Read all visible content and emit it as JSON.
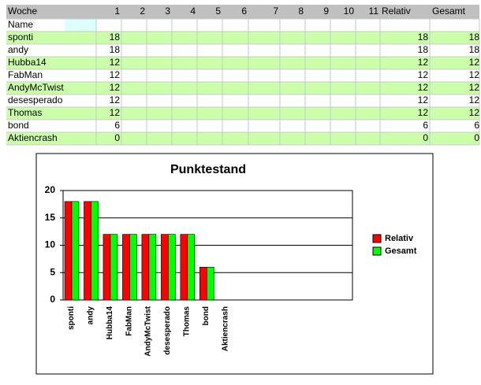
{
  "table": {
    "header": {
      "label": "Woche",
      "weeks": [
        1,
        2,
        3,
        4,
        5,
        6,
        7,
        8,
        9,
        10,
        11
      ],
      "relativ": "Relativ",
      "gesamt": "Gesamt"
    },
    "name_label": "Name",
    "rows": [
      {
        "name": "sponti",
        "week1": 18,
        "relativ": 18,
        "gesamt": 18
      },
      {
        "name": "andy",
        "week1": 18,
        "relativ": 18,
        "gesamt": 18
      },
      {
        "name": "Hubba14",
        "week1": 12,
        "relativ": 12,
        "gesamt": 12
      },
      {
        "name": "FabMan",
        "week1": 12,
        "relativ": 12,
        "gesamt": 12
      },
      {
        "name": "AndyMcTwist",
        "week1": 12,
        "relativ": 12,
        "gesamt": 12
      },
      {
        "name": "desesperado",
        "week1": 12,
        "relativ": 12,
        "gesamt": 12
      },
      {
        "name": "Thomas",
        "week1": 12,
        "relativ": 12,
        "gesamt": 12
      },
      {
        "name": "bond",
        "week1": 6,
        "relativ": 6,
        "gesamt": 6
      },
      {
        "name": "Aktiencrash",
        "week1": 0,
        "relativ": 0,
        "gesamt": 0
      }
    ]
  },
  "chart_data": {
    "type": "bar",
    "title": "Punktestand",
    "categories": [
      "sponti",
      "andy",
      "Hubba14",
      "FabMan",
      "AndyMcTwist",
      "desesperado",
      "Thomas",
      "bond",
      "Aktiencrash",
      null,
      null,
      null,
      null,
      null,
      null
    ],
    "series": [
      {
        "name": "Relativ",
        "color": "#ff0000",
        "values": [
          18,
          18,
          12,
          12,
          12,
          12,
          12,
          6,
          0,
          null,
          null,
          null,
          null,
          null,
          null
        ]
      },
      {
        "name": "Gesamt",
        "color": "#00ff00",
        "values": [
          18,
          18,
          12,
          12,
          12,
          12,
          12,
          6,
          0,
          null,
          null,
          null,
          null,
          null,
          null
        ]
      }
    ],
    "ylim": [
      0,
      20
    ],
    "yticks": [
      0,
      5,
      10,
      15,
      20
    ],
    "grid": true,
    "legend": "right"
  }
}
